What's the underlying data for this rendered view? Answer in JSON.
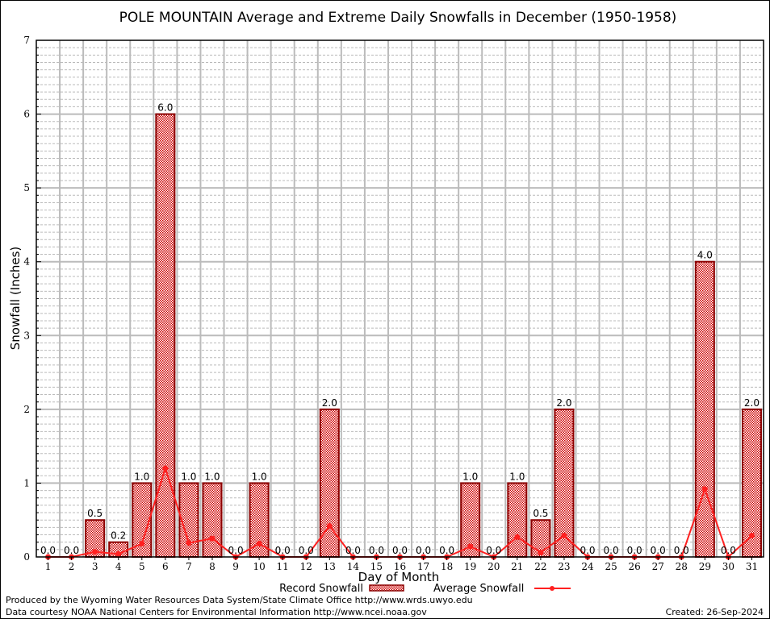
{
  "chart_data": {
    "type": "bar",
    "title": "POLE MOUNTAIN Average and Extreme Daily Snowfalls in December (1950-1958)",
    "xlabel": "Day of Month",
    "ylabel": "Snowfall (Inches)",
    "ylim": [
      0,
      7
    ],
    "yticks": [
      "0",
      "1",
      "2",
      "3",
      "4",
      "5",
      "6",
      "7"
    ],
    "categories": [
      "1",
      "2",
      "3",
      "4",
      "5",
      "6",
      "7",
      "8",
      "9",
      "10",
      "11",
      "12",
      "13",
      "14",
      "15",
      "16",
      "17",
      "18",
      "19",
      "20",
      "21",
      "22",
      "23",
      "24",
      "25",
      "26",
      "27",
      "28",
      "29",
      "30",
      "31"
    ],
    "series": [
      {
        "name": "Record Snowfall",
        "type": "bar",
        "values": [
          0,
          0,
          0.5,
          0.2,
          1,
          6,
          1,
          1,
          0,
          1,
          0,
          0,
          2,
          0,
          0,
          0,
          0,
          0,
          1,
          0,
          1,
          0.5,
          2,
          0,
          0,
          0,
          0,
          0,
          4,
          0,
          2
        ],
        "labels": [
          "0.0",
          "0.0",
          "0.5",
          "0.2",
          "1.0",
          "6.0",
          "1.0",
          "1.0",
          "0.0",
          "1.0",
          "0.0",
          "0.0",
          "2.0",
          "0.0",
          "0.0",
          "0.0",
          "0.0",
          "0.0",
          "1.0",
          "0.0",
          "1.0",
          "0.5",
          "2.0",
          "0.0",
          "0.0",
          "0.0",
          "0.0",
          "0.0",
          "4.0",
          "0.0",
          "2.0"
        ]
      },
      {
        "name": "Average Snowfall",
        "type": "line",
        "values": [
          0,
          0,
          0.07,
          0.04,
          0.18,
          1.2,
          0.19,
          0.25,
          0,
          0.18,
          0,
          0,
          0.42,
          0,
          0,
          0,
          0,
          0,
          0.14,
          0,
          0.27,
          0.06,
          0.29,
          0,
          0,
          0,
          0,
          0,
          0.92,
          0,
          0.29
        ]
      }
    ],
    "grid": true,
    "legend": "bottom",
    "colors": {
      "bar_fill": "#cc0000",
      "bar_edge": "#8b0000",
      "line": "#ff2020"
    }
  },
  "footer": {
    "produced": "Produced by the Wyoming Water Resources Data System/State Climate Office http://www.wrds.uwyo.edu",
    "courtesy": "Data courtesy NOAA National Centers for Environmental Information http://www.ncei.noaa.gov",
    "created": "Created: 26-Sep-2024"
  }
}
